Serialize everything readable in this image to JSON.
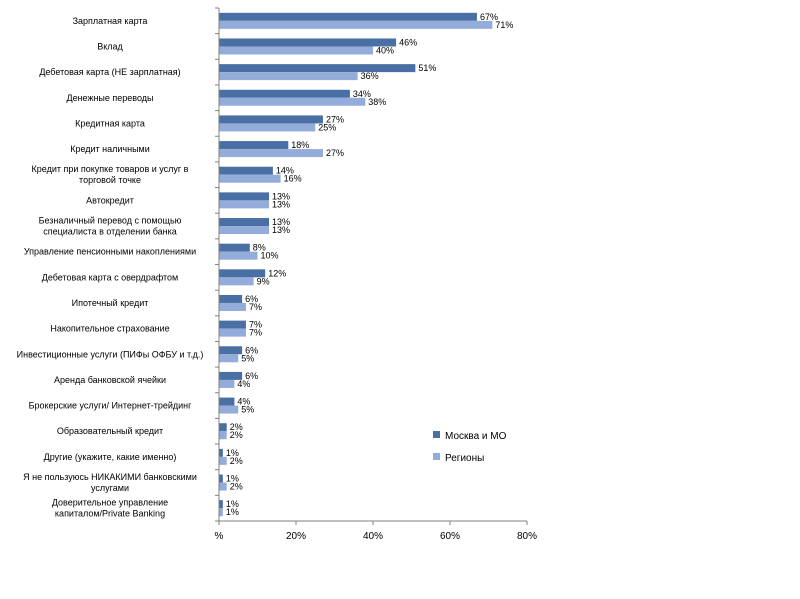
{
  "chart_data": {
    "type": "bar",
    "orientation": "horizontal",
    "categories": [
      "Зарплатная карта",
      "Вклад",
      "Дебетовая карта (НЕ зарплатная)",
      "Денежные переводы",
      "Кредитная карта",
      "Кредит наличными",
      "Кредит при покупке товаров и услуг в торговой точке",
      "Автокредит",
      "Безналичный перевод с помощью специалиста в отделении банка",
      "Управление пенсионными накоплениями",
      "Дебетовая карта с овердрафтом",
      "Ипотечный кредит",
      "Накопительное страхование",
      "Инвестиционные услуги (ПИФы ОФБУ и т.д.)",
      "Аренда банковской ячейки",
      "Брокерские услуги/ Интернет-трейдинг",
      "Образовательный кредит",
      "Другие (укажите, какие именно)",
      "Я не пользуюсь НИКАКИМИ банковскими услугами",
      "Доверительное управление капиталом/Private Banking"
    ],
    "series": [
      {
        "name": "Москва и МО",
        "color": "#4a6fa5",
        "values": [
          67,
          46,
          51,
          34,
          27,
          18,
          14,
          13,
          13,
          8,
          12,
          6,
          7,
          6,
          6,
          4,
          2,
          1,
          1,
          1
        ]
      },
      {
        "name": "Регионы",
        "color": "#94acd9",
        "values": [
          71,
          40,
          36,
          38,
          25,
          27,
          16,
          13,
          13,
          10,
          9,
          7,
          7,
          5,
          4,
          5,
          2,
          2,
          2,
          1
        ]
      }
    ],
    "xlim": [
      0,
      80
    ],
    "xticks": [
      "%",
      "20%",
      "40%",
      "60%",
      "80%"
    ],
    "value_suffix": "%",
    "grid": false,
    "legend_position": "right"
  }
}
